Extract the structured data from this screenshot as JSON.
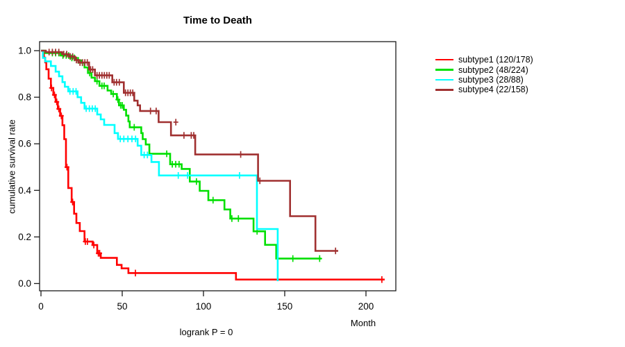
{
  "title": "Time to Death",
  "chart_data": {
    "type": "line",
    "subtype": "kaplan-meier-step",
    "title": "Time to Death",
    "xlabel": "Month",
    "ylabel": "cumulative survival rate",
    "footnote": "logrank P = 0",
    "grid": false,
    "legend_position": "right",
    "x_axis": {
      "ticks": [
        0,
        50,
        100,
        150,
        200
      ],
      "labels": [
        "0",
        "50",
        "100",
        "150",
        "200"
      ],
      "range": [
        0,
        218
      ]
    },
    "y_axis": {
      "ticks": [
        0,
        0.2,
        0.4,
        0.6,
        0.8,
        1.0
      ],
      "labels": [
        "0.0",
        "0.2",
        "0.4",
        "0.6",
        "0.8",
        "1.0"
      ],
      "range": [
        0,
        1
      ]
    },
    "series": [
      {
        "name": "subtype1",
        "legend_label": "subtype1 (120/178)",
        "events": 120,
        "n": 178,
        "color": "#FF0000",
        "end_month": 211.5,
        "steps": [
          [
            0,
            1.0
          ],
          [
            1.3,
            0.99
          ],
          [
            1.8,
            0.97
          ],
          [
            2.6,
            0.95
          ],
          [
            3.3,
            0.92
          ],
          [
            4.7,
            0.88
          ],
          [
            6.1,
            0.84
          ],
          [
            7.6,
            0.81
          ],
          [
            9,
            0.78
          ],
          [
            10.4,
            0.75
          ],
          [
            11.8,
            0.72
          ],
          [
            13.2,
            0.68
          ],
          [
            14.3,
            0.62
          ],
          [
            15.4,
            0.5
          ],
          [
            16.8,
            0.41
          ],
          [
            18.9,
            0.35
          ],
          [
            20.4,
            0.3
          ],
          [
            21.8,
            0.26
          ],
          [
            23.9,
            0.225
          ],
          [
            26.8,
            0.18
          ],
          [
            31.8,
            0.165
          ],
          [
            34.6,
            0.13
          ],
          [
            36.8,
            0.11
          ],
          [
            46.7,
            0.08
          ],
          [
            49.6,
            0.065
          ],
          [
            53.8,
            0.045
          ],
          [
            120,
            0.017
          ]
        ],
        "censors": [
          [
            6.5,
            0.84
          ],
          [
            8.3,
            0.81
          ],
          [
            9.7,
            0.78
          ],
          [
            11,
            0.75
          ],
          [
            12.5,
            0.72
          ],
          [
            16,
            0.5
          ],
          [
            19.5,
            0.35
          ],
          [
            27.3,
            0.18
          ],
          [
            28.6,
            0.18
          ],
          [
            32.5,
            0.165
          ],
          [
            35.3,
            0.13
          ],
          [
            36.1,
            0.13
          ],
          [
            58.1,
            0.045
          ],
          [
            209.8,
            0.017
          ]
        ]
      },
      {
        "name": "subtype2",
        "legend_label": "subtype2 (48/224)",
        "events": 48,
        "n": 224,
        "color": "#00DF00",
        "end_month": 172.5,
        "steps": [
          [
            0,
            1.0
          ],
          [
            2.6,
            0.99
          ],
          [
            12,
            0.979
          ],
          [
            18,
            0.969
          ],
          [
            22,
            0.958
          ],
          [
            24.7,
            0.948
          ],
          [
            26.8,
            0.928
          ],
          [
            28.9,
            0.904
          ],
          [
            31.1,
            0.884
          ],
          [
            33.2,
            0.869
          ],
          [
            36,
            0.849
          ],
          [
            41,
            0.829
          ],
          [
            43.2,
            0.814
          ],
          [
            46.7,
            0.79
          ],
          [
            48,
            0.765
          ],
          [
            51,
            0.746
          ],
          [
            52.4,
            0.721
          ],
          [
            53.8,
            0.696
          ],
          [
            54.6,
            0.671
          ],
          [
            61.7,
            0.646
          ],
          [
            62.6,
            0.62
          ],
          [
            64.5,
            0.597
          ],
          [
            66.7,
            0.557
          ],
          [
            79.5,
            0.512
          ],
          [
            86.6,
            0.492
          ],
          [
            91.6,
            0.438
          ],
          [
            97.7,
            0.398
          ],
          [
            103,
            0.358
          ],
          [
            112.9,
            0.318
          ],
          [
            116.5,
            0.279
          ],
          [
            130.8,
            0.224
          ],
          [
            137.9,
            0.166
          ],
          [
            144.8,
            0.107
          ]
        ],
        "censors": [
          [
            7,
            0.99
          ],
          [
            9,
            0.99
          ],
          [
            11,
            0.99
          ],
          [
            13.5,
            0.979
          ],
          [
            15.5,
            0.979
          ],
          [
            17,
            0.979
          ],
          [
            19,
            0.969
          ],
          [
            20.5,
            0.969
          ],
          [
            23,
            0.958
          ],
          [
            25.5,
            0.948
          ],
          [
            30,
            0.904
          ],
          [
            34.5,
            0.869
          ],
          [
            37.5,
            0.849
          ],
          [
            38.9,
            0.849
          ],
          [
            44.5,
            0.814
          ],
          [
            47.3,
            0.79
          ],
          [
            49,
            0.765
          ],
          [
            50,
            0.765
          ],
          [
            57.4,
            0.671
          ],
          [
            77.4,
            0.557
          ],
          [
            80.8,
            0.512
          ],
          [
            82.9,
            0.512
          ],
          [
            85,
            0.512
          ],
          [
            95.7,
            0.438
          ],
          [
            105.9,
            0.358
          ],
          [
            117.5,
            0.279
          ],
          [
            121.5,
            0.279
          ],
          [
            133,
            0.224
          ],
          [
            155,
            0.107
          ],
          [
            171.5,
            0.107
          ]
        ]
      },
      {
        "name": "subtype3",
        "legend_label": "subtype3 (28/88)",
        "events": 28,
        "n": 88,
        "color": "#00FFFF",
        "end_month": 145.7,
        "steps": [
          [
            0,
            1.0
          ],
          [
            1.2,
            0.969
          ],
          [
            2.6,
            0.954
          ],
          [
            6.1,
            0.934
          ],
          [
            9,
            0.91
          ],
          [
            11.1,
            0.89
          ],
          [
            13.2,
            0.865
          ],
          [
            14.7,
            0.845
          ],
          [
            16.8,
            0.825
          ],
          [
            22.5,
            0.8
          ],
          [
            24.7,
            0.776
          ],
          [
            26.8,
            0.751
          ],
          [
            34.6,
            0.726
          ],
          [
            36.8,
            0.705
          ],
          [
            38.9,
            0.681
          ],
          [
            45.3,
            0.646
          ],
          [
            47.4,
            0.621
          ],
          [
            59.5,
            0.592
          ],
          [
            61.7,
            0.552
          ],
          [
            68,
            0.522
          ],
          [
            72.6,
            0.464
          ],
          [
            132.9,
            0.234
          ],
          [
            145.7,
            0.01
          ]
        ],
        "censors": [
          [
            17.8,
            0.825
          ],
          [
            19.8,
            0.825
          ],
          [
            21.6,
            0.825
          ],
          [
            27.8,
            0.751
          ],
          [
            29.8,
            0.751
          ],
          [
            31.6,
            0.751
          ],
          [
            33.4,
            0.751
          ],
          [
            48.8,
            0.621
          ],
          [
            51,
            0.621
          ],
          [
            53.5,
            0.621
          ],
          [
            56,
            0.621
          ],
          [
            58.2,
            0.621
          ],
          [
            63.5,
            0.552
          ],
          [
            65.5,
            0.552
          ],
          [
            84.5,
            0.464
          ],
          [
            90.2,
            0.464
          ],
          [
            122.2,
            0.464
          ]
        ]
      },
      {
        "name": "subtype4",
        "legend_label": "subtype4 (22/158)",
        "events": 22,
        "n": 158,
        "color": "#A03030",
        "end_month": 182.9,
        "steps": [
          [
            0,
            1.0
          ],
          [
            3,
            0.994
          ],
          [
            13,
            0.985
          ],
          [
            17,
            0.975
          ],
          [
            20.9,
            0.96
          ],
          [
            23,
            0.949
          ],
          [
            29.6,
            0.919
          ],
          [
            33.2,
            0.894
          ],
          [
            43.9,
            0.864
          ],
          [
            51,
            0.819
          ],
          [
            57.4,
            0.785
          ],
          [
            59.5,
            0.765
          ],
          [
            61,
            0.741
          ],
          [
            72.4,
            0.693
          ],
          [
            80,
            0.636
          ],
          [
            94.9,
            0.554
          ],
          [
            133.6,
            0.441
          ],
          [
            153.3,
            0.289
          ],
          [
            168.9,
            0.14
          ]
        ],
        "censors": [
          [
            5,
            0.994
          ],
          [
            7,
            0.994
          ],
          [
            9,
            0.994
          ],
          [
            11,
            0.994
          ],
          [
            14,
            0.985
          ],
          [
            15.8,
            0.985
          ],
          [
            18,
            0.975
          ],
          [
            19.5,
            0.975
          ],
          [
            21.8,
            0.96
          ],
          [
            24,
            0.949
          ],
          [
            25.5,
            0.949
          ],
          [
            27,
            0.949
          ],
          [
            28.5,
            0.949
          ],
          [
            30.5,
            0.919
          ],
          [
            31.8,
            0.919
          ],
          [
            34.5,
            0.894
          ],
          [
            36,
            0.894
          ],
          [
            37.5,
            0.894
          ],
          [
            39,
            0.894
          ],
          [
            40.5,
            0.894
          ],
          [
            42,
            0.894
          ],
          [
            45,
            0.864
          ],
          [
            46.5,
            0.864
          ],
          [
            48.2,
            0.864
          ],
          [
            52,
            0.819
          ],
          [
            53.5,
            0.819
          ],
          [
            55,
            0.819
          ],
          [
            56.5,
            0.819
          ],
          [
            67.4,
            0.741
          ],
          [
            70.9,
            0.741
          ],
          [
            83,
            0.693
          ],
          [
            88,
            0.636
          ],
          [
            92.5,
            0.636
          ],
          [
            94,
            0.636
          ],
          [
            122.9,
            0.554
          ],
          [
            134.7,
            0.441
          ],
          [
            181.3,
            0.14
          ]
        ]
      }
    ],
    "axis_color": "#1a1a1a"
  }
}
